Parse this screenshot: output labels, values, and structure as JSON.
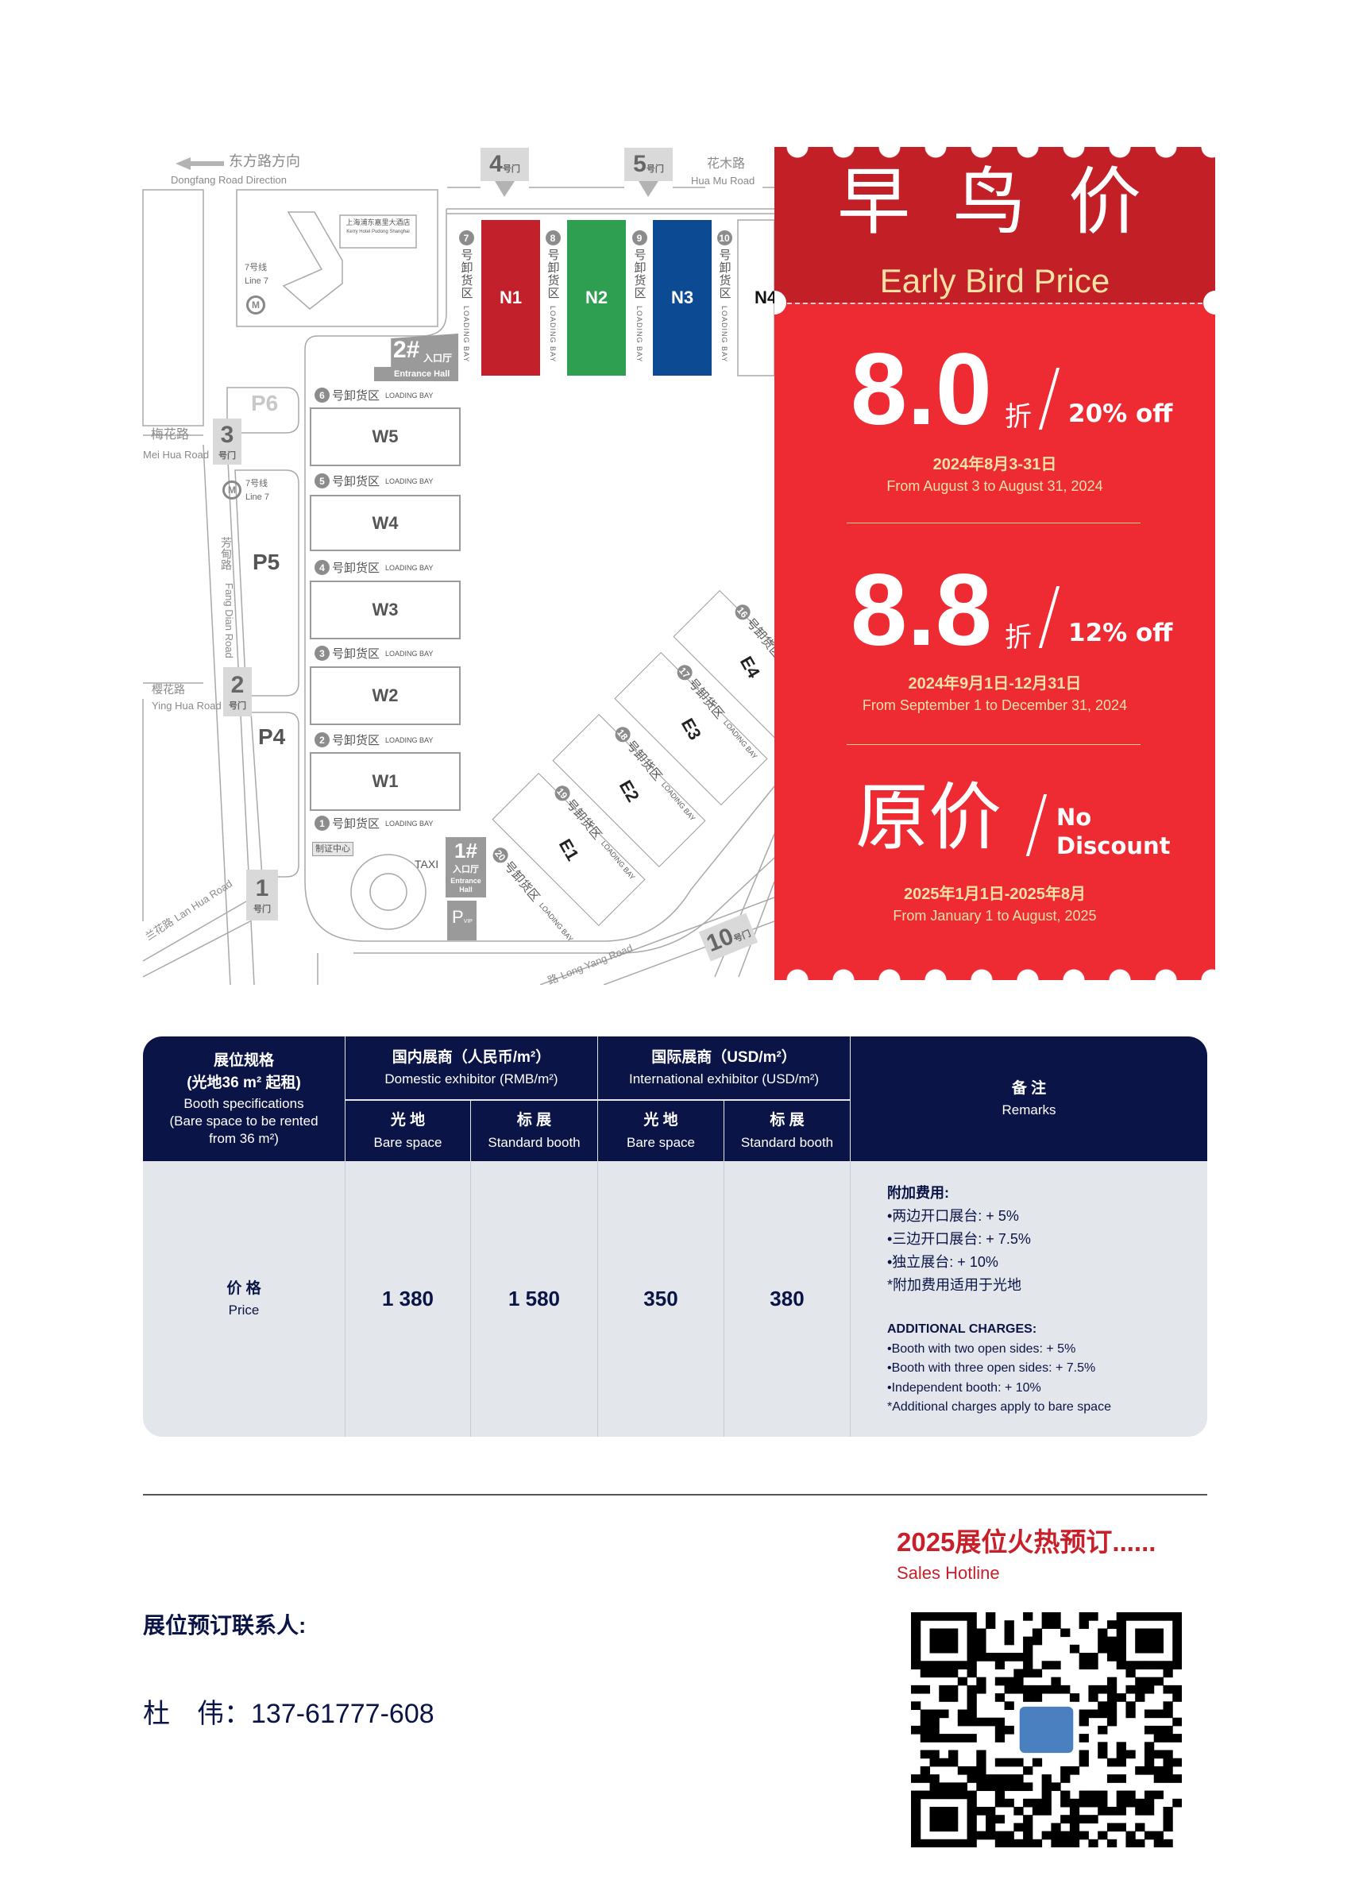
{
  "map": {
    "direction": {
      "zh": "东方路方向",
      "en": "Dongfang Road Direction"
    },
    "gate_suffix": "号门",
    "gates": {
      "g1": "1",
      "g2": "2",
      "g3": "3",
      "g4": "4",
      "g5": "5",
      "g10": "10"
    },
    "roads": {
      "hua_mu": {
        "zh": "花木路",
        "en": "Hua Mu Road"
      },
      "mei_hua": {
        "zh": "梅花路",
        "en": "Mei Hua Road"
      },
      "ying_hua": {
        "zh": "樱花路",
        "en": "Ying Hua Road"
      },
      "fang_dian": {
        "zh": "芳甸路",
        "en": "Fang Dian Road"
      },
      "lan_hua": {
        "zh": "兰花路",
        "en": "Lan Hua Road"
      },
      "long_yang": {
        "zh": "路",
        "en": "Long Yang Road"
      }
    },
    "hotel": {
      "zh": "上海浦东嘉里大酒店",
      "en": "Kerry Hotel Pudong Shanghai"
    },
    "metro": {
      "zh": "7号线",
      "en": "Line 7"
    },
    "entrance2": {
      "num": "2#",
      "zh": "入口厅",
      "en": "Entrance Hall"
    },
    "entrance1": {
      "num": "1#",
      "zh": "入口厅",
      "en": "Entrance Hall"
    },
    "parking": {
      "p4": "P4",
      "p5": "P5",
      "p6": "P6",
      "vip_p": "P",
      "vip": "VIP"
    },
    "accreditation": "制证中心",
    "taxi": "TAXI",
    "loading_bay_zh": "号卸货区",
    "loading_bay_zh_short": "号卸货区",
    "loading_bay_en": "LOADING BAY",
    "halls_n": [
      {
        "name": "N1",
        "color": "#c2202a"
      },
      {
        "name": "N2",
        "color": "#2e9e50"
      },
      {
        "name": "N3",
        "color": "#0d4a94"
      },
      {
        "name": "N4",
        "color": "#ffffff"
      }
    ],
    "halls_w": [
      "W5",
      "W4",
      "W3",
      "W2",
      "W1"
    ],
    "halls_e": [
      "E1",
      "E2",
      "E3",
      "E4"
    ],
    "bays_n": [
      "7",
      "8",
      "9",
      "10"
    ],
    "bays_w": [
      "6",
      "5",
      "4",
      "3",
      "2",
      "1"
    ],
    "bays_e": [
      "20",
      "19",
      "18",
      "17",
      "16"
    ]
  },
  "promo": {
    "title_zh": "早 鸟 价",
    "title_en": "Early Bird Price",
    "colors": {
      "band": "#c21f27",
      "panel": "#ee2a33",
      "accent": "#f4e1a6"
    },
    "tiers": [
      {
        "value": "8.0",
        "unit": "折",
        "off": "20% off",
        "date_zh": "2024年8月3-31日",
        "date_en": "From August 3 to August 31, 2024"
      },
      {
        "value": "8.8",
        "unit": "折",
        "off": "12% off",
        "date_zh": "2024年9月1日-12月31日",
        "date_en": "From September 1 to December 31, 2024"
      },
      {
        "value": "原价",
        "off_line1": "No",
        "off_line2": "Discount",
        "date_zh": "2025年1月1日-2025年8月",
        "date_en": "From January 1 to August, 2025"
      }
    ]
  },
  "table": {
    "colors": {
      "header": "#0b1446",
      "body": "#e3e7ec"
    },
    "spec": {
      "zh": "展位规格",
      "zh2": "(光地36 m² 起租)",
      "en": "Booth specifications",
      "en2": "(Bare space to be rented",
      "en3": "from 36 m²)"
    },
    "domestic": {
      "zh": "国内展商（人民币/m²）",
      "en": "Domestic exhibitor (RMB/m²)"
    },
    "international": {
      "zh": "国际展商（USD/m²）",
      "en": "International exhibitor (USD/m²)"
    },
    "bare": {
      "zh": "光 地",
      "en": "Bare space"
    },
    "standard": {
      "zh": "标 展",
      "en": "Standard booth"
    },
    "remarks": {
      "zh": "备 注",
      "en": "Remarks"
    },
    "price": {
      "zh": "价 格",
      "en": "Price"
    },
    "values": [
      "1 380",
      "1 580",
      "350",
      "380"
    ],
    "remarks_body": {
      "zh_title": "附加费用:",
      "zh_items": [
        "•两边开口展台: + 5%",
        "•三边开口展台: + 7.5%",
        "•独立展台: + 10%",
        "*附加费用适用于光地"
      ],
      "en_title": "ADDITIONAL CHARGES:",
      "en_items": [
        "•Booth with two open sides: + 5%",
        "•Booth with three open sides: + 7.5%",
        "•Independent booth: + 10%",
        "*Additional charges apply to bare space"
      ]
    }
  },
  "contact": {
    "hotline_zh": "2025展位火热预订......",
    "hotline_en": "Sales Hotline",
    "label": "展位预订联系人:",
    "person": "杜　伟：",
    "phone": "137-61777-608",
    "qr_icon": "qr-code"
  }
}
